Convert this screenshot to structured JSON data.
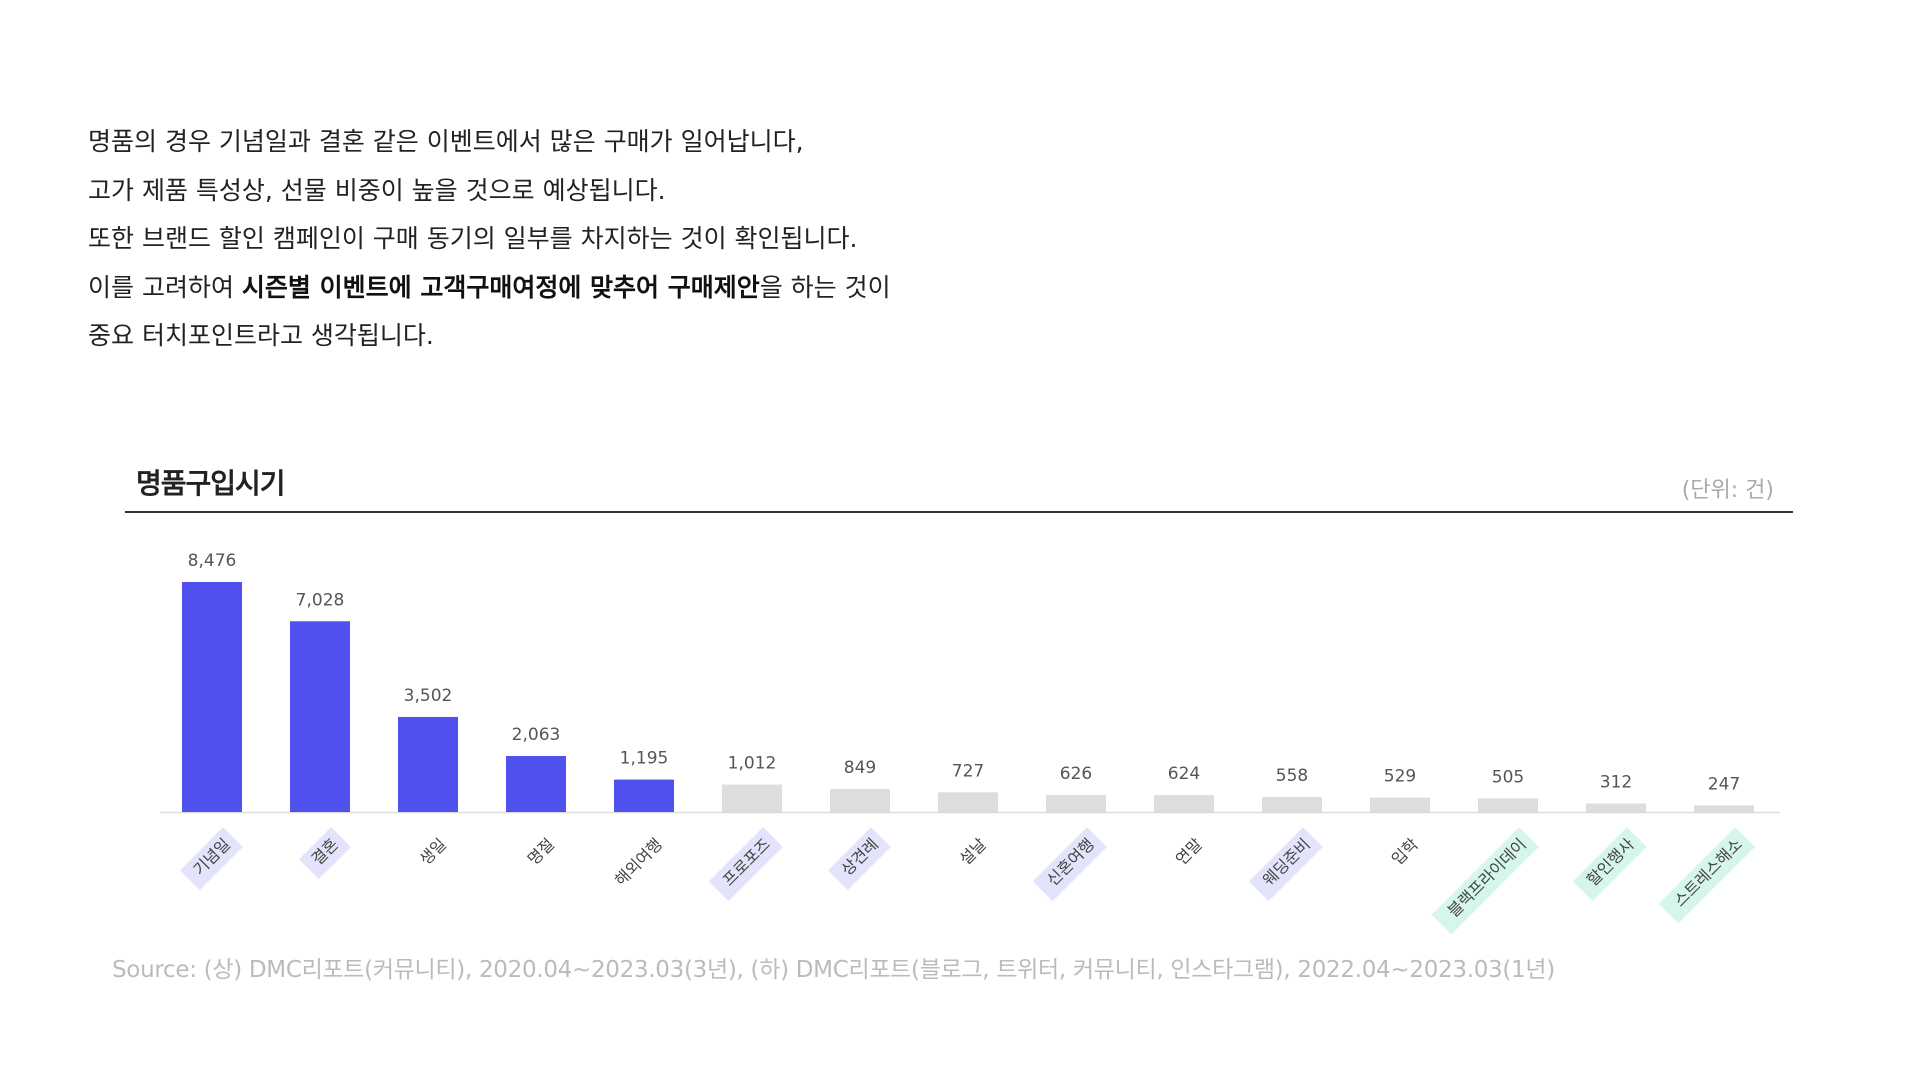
{
  "intro": {
    "line1": "명품의 경우 기념일과 결혼 같은 이벤트에서 많은 구매가 일어납니다,",
    "line2": "고가 제품 특성상, 선물 비중이 높을 것으로 예상됩니다.",
    "line3": "또한 브랜드 할인 캠페인이 구매 동기의 일부를 차지하는 것이 확인됩니다.",
    "line4_pre": "이를 고려하여 ",
    "line4_bold": "시즌별 이벤트에 고객구매여정에 맞추어 구매제안",
    "line4_post": "을 하는 것이",
    "line5": "중요 터치포인트라고 생각됩니다."
  },
  "chart_data": {
    "type": "bar",
    "title": "명품구입시기",
    "unit_label": "(단위: 건)",
    "categories": [
      "기념일",
      "결혼",
      "생일",
      "명절",
      "해외여행",
      "프로포즈",
      "상견례",
      "설날",
      "신혼여행",
      "연말",
      "웨딩준비",
      "입학",
      "블랙프라이데이",
      "할인행사",
      "스트레스해소"
    ],
    "values": [
      8476,
      7028,
      3502,
      2063,
      1195,
      1012,
      849,
      727,
      626,
      624,
      558,
      529,
      505,
      312,
      247
    ],
    "value_labels": [
      "8,476",
      "7,028",
      "3,502",
      "2,063",
      "1,195",
      "1,012",
      "849",
      "727",
      "626",
      "624",
      "558",
      "529",
      "505",
      "312",
      "247"
    ],
    "ylim": [
      0,
      8476
    ],
    "grid": false,
    "highlight_colors": [
      "#5050ee",
      "#5050ee",
      "#5050ee",
      "#5050ee",
      "#5050ee",
      "#dddddd",
      "#dddddd",
      "#dddddd",
      "#dddddd",
      "#dddddd",
      "#dddddd",
      "#dddddd",
      "#dddddd",
      "#dddddd",
      "#dddddd"
    ],
    "label_badges": [
      "purple",
      "purple",
      "none",
      "none",
      "none",
      "purple",
      "purple",
      "none",
      "purple",
      "none",
      "purple",
      "none",
      "green",
      "green",
      "green"
    ],
    "badge_colors": {
      "purple": "#e3e3fb",
      "green": "#d6f6e9"
    }
  },
  "source": "Source:  (상) DMC리포트(커뮤니티), 2020.04~2023.03(3년),  (하) DMC리포트(블로그, 트위터, 커뮤니티, 인스타그램), 2022.04~2023.03(1년)"
}
